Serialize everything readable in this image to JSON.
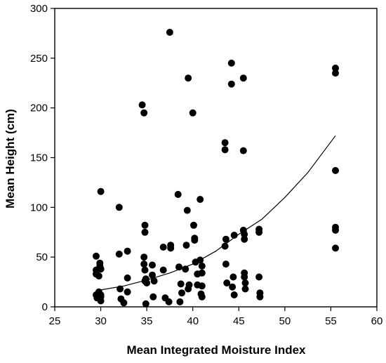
{
  "chart_data": {
    "type": "scatter",
    "xlabel": "Mean Integrated Moisture Index",
    "ylabel": "Mean Height (cm)",
    "xlim": [
      25,
      60
    ],
    "ylim": [
      0,
      300
    ],
    "xticks": [
      25,
      30,
      35,
      40,
      45,
      50,
      55,
      60
    ],
    "yticks": [
      0,
      50,
      100,
      150,
      200,
      250,
      300
    ],
    "grid": false,
    "legend": "none",
    "point_color": "#000000",
    "series": [
      {
        "x": [
          29.5,
          29.5,
          29.5,
          29.5,
          29.6,
          29.8,
          29.8,
          29.9,
          29.9,
          30.0,
          30.0,
          30.0,
          30.0,
          30.0,
          32.0,
          32.0,
          32.1,
          32.2,
          32.5,
          32.9,
          32.9,
          32.9,
          34.5,
          34.7,
          34.7,
          34.7,
          34.8,
          34.8,
          34.8,
          34.8,
          34.9,
          34.9,
          35.0,
          35.6,
          35.6,
          35.7,
          35.8,
          36.8,
          36.8,
          37.0,
          37.4,
          37.5,
          37.6,
          37.6,
          38.4,
          38.5,
          38.6,
          38.7,
          38.8,
          39.2,
          39.3,
          39.4,
          39.5,
          39.5,
          39.6,
          40.0,
          40.1,
          40.2,
          40.2,
          40.3,
          40.5,
          40.5,
          40.8,
          40.8,
          40.9,
          41.0,
          41.0,
          41.0,
          41.0,
          43.5,
          43.5,
          43.5,
          43.6,
          43.6,
          43.7,
          44.2,
          44.2,
          44.3,
          44.4,
          44.5,
          44.5,
          45.5,
          45.5,
          45.5,
          45.6,
          45.6,
          45.6,
          45.6,
          45.7,
          45.7,
          47.2,
          47.2,
          47.2,
          47.3,
          47.3,
          55.5,
          55.5,
          55.5,
          55.5,
          55.5,
          55.5
        ],
        "y": [
          51,
          37,
          33,
          12,
          9,
          15,
          31,
          44,
          41,
          38,
          116,
          12,
          10,
          6,
          100,
          53,
          18,
          8,
          4,
          29,
          15,
          56,
          203,
          195,
          50,
          43,
          26,
          37,
          82,
          75,
          28,
          3,
          24,
          42,
          32,
          10,
          26,
          60,
          37,
          9,
          5,
          276,
          59,
          62,
          113,
          40,
          5,
          23,
          14,
          38,
          62,
          97,
          230,
          18,
          22,
          195,
          82,
          67,
          69,
          45,
          33,
          22,
          108,
          47,
          13,
          41,
          34,
          21,
          10,
          165,
          158,
          61,
          68,
          43,
          24,
          245,
          224,
          20,
          30,
          12,
          72,
          230,
          157,
          77,
          73,
          68,
          34,
          30,
          24,
          18,
          78,
          75,
          30,
          14,
          10,
          240,
          235,
          137,
          80,
          77,
          59
        ]
      }
    ],
    "trendline": {
      "type": "exponential",
      "x": [
        29.5,
        30,
        32.5,
        35,
        37.5,
        40,
        42.5,
        45,
        47.5,
        50,
        52.5,
        55.5
      ],
      "y": [
        16,
        17,
        21,
        27,
        34,
        43,
        56,
        73,
        88,
        110,
        135,
        172
      ]
    }
  }
}
